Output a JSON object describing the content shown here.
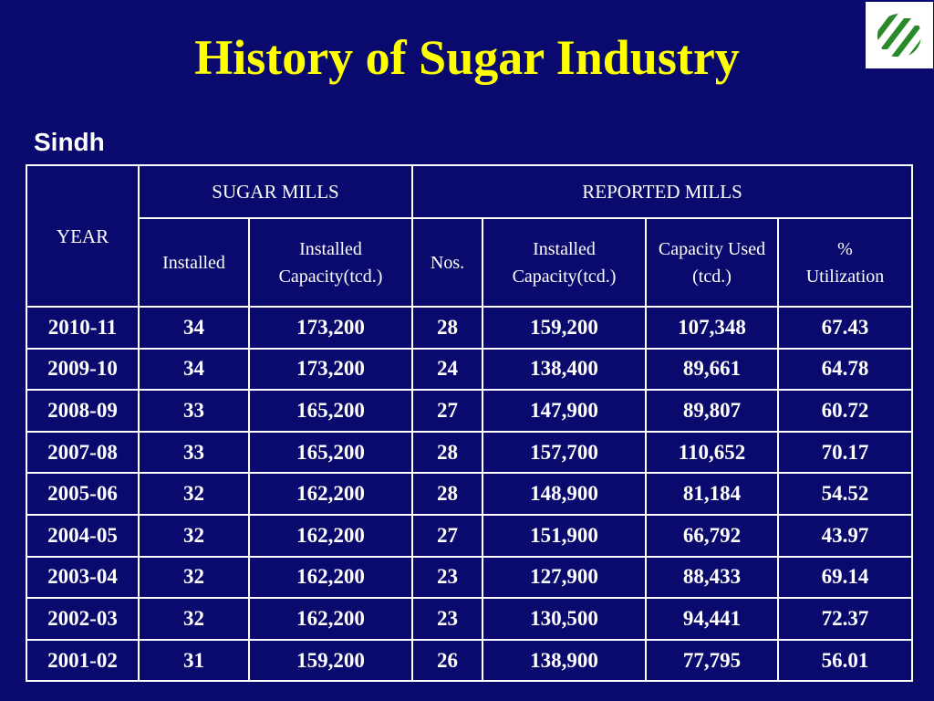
{
  "title": "History of Sugar Industry",
  "subtitle": "Sindh",
  "logo": {
    "icon": "diagonal-stripes-logo",
    "color": "#2a8a2a"
  },
  "table": {
    "year_header": "YEAR",
    "group_headers": [
      "SUGAR MILLS",
      "REPORTED MILLS"
    ],
    "sub_headers": {
      "installed": "Installed",
      "installed_capacity": "Installed Capacity(tcd.)",
      "nos": "Nos.",
      "reported_installed_capacity": "Installed Capacity(tcd.)",
      "capacity_used": "Capacity Used (tcd.)",
      "percent_symbol": "%",
      "utilization": "Utilization"
    },
    "rows": [
      [
        "2010-11",
        "34",
        "173,200",
        "28",
        "159,200",
        "107,348",
        "67.43"
      ],
      [
        "2009-10",
        "34",
        "173,200",
        "24",
        "138,400",
        "89,661",
        "64.78"
      ],
      [
        "2008-09",
        "33",
        "165,200",
        "27",
        "147,900",
        "89,807",
        "60.72"
      ],
      [
        "2007-08",
        "33",
        "165,200",
        "28",
        "157,700",
        "110,652",
        "70.17"
      ],
      [
        "2005-06",
        "32",
        "162,200",
        "28",
        "148,900",
        "81,184",
        "54.52"
      ],
      [
        "2004-05",
        "32",
        "162,200",
        "27",
        "151,900",
        "66,792",
        "43.97"
      ],
      [
        "2003-04",
        "32",
        "162,200",
        "23",
        "127,900",
        "88,433",
        "69.14"
      ],
      [
        "2002-03",
        "32",
        "162,200",
        "23",
        "130,500",
        "94,441",
        "72.37"
      ],
      [
        "2001-02",
        "31",
        "159,200",
        "26",
        "138,900",
        "77,795",
        "56.01"
      ]
    ]
  }
}
